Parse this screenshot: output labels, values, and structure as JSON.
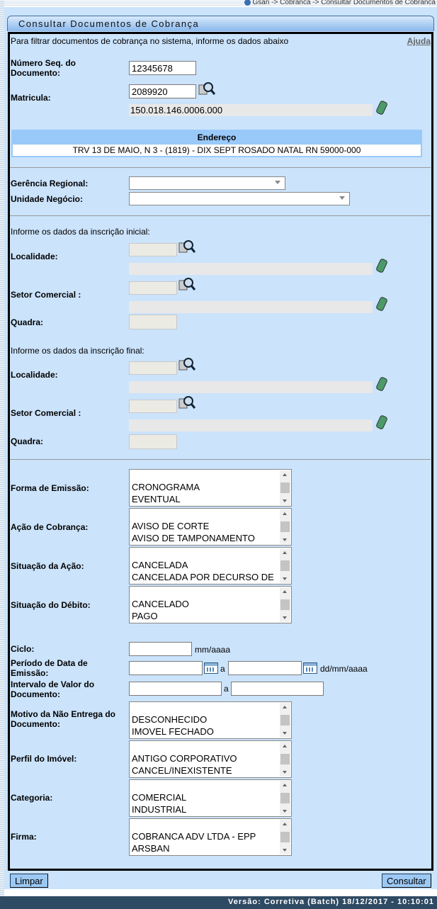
{
  "breadcrumb": "Gsan -> Cobranca -> Consultar Documentos de Cobranca",
  "title": "Consultar Documentos de Cobrança",
  "intro": "Para filtrar documentos de cobrança no sistema, informe os dados abaixo",
  "help_link": "Ajuda",
  "numero_seq": {
    "label": "Número Seq. do Documento:",
    "value": "12345678"
  },
  "matricula": {
    "label": "Matricula:",
    "value": "2089920",
    "inscricao": "150.018.146.0006.000"
  },
  "endereco": {
    "header": "Endereço",
    "value": "TRV 13 DE MAIO, N 3 - (1819) - DIX SEPT ROSADO NATAL RN 59000-000"
  },
  "gerencia_regional": {
    "label": "Gerência Regional:",
    "value": ""
  },
  "unidade_negocio": {
    "label": "Unidade Negócio:",
    "value": ""
  },
  "inscricao_inicial": {
    "heading": "Informe os dados da inscrição inicial:",
    "localidade_label": "Localidade:",
    "setor_label": "Setor Comercial :",
    "quadra_label": "Quadra:"
  },
  "inscricao_final": {
    "heading": "Informe os dados da inscrição final:",
    "localidade_label": "Localidade:",
    "setor_label": "Setor Comercial :",
    "quadra_label": "Quadra:"
  },
  "forma_emissao": {
    "label": "Forma de Emissão:",
    "options": [
      "CRONOGRAMA",
      "EVENTUAL"
    ]
  },
  "acao_cobranca": {
    "label": "Ação de Cobrança:",
    "options": [
      "AVISO DE CORTE",
      "AVISO DE TAMPONAMENTO"
    ]
  },
  "situacao_acao": {
    "label": "Situação da Ação:",
    "options": [
      "CANCELADA",
      "CANCELADA POR DECURSO DE"
    ]
  },
  "situacao_debito": {
    "label": "Situação do Débito:",
    "options": [
      "CANCELADO",
      "PAGO"
    ]
  },
  "ciclo": {
    "label": "Ciclo:",
    "value": "",
    "hint": "mm/aaaa"
  },
  "periodo_emissao": {
    "label": "Período de Data de Emissão:",
    "separator": "a",
    "hint": "dd/mm/aaaa"
  },
  "intervalo_valor": {
    "label": "Intervalo de Valor do Documento:",
    "separator": "a"
  },
  "motivo_nao_entrega": {
    "label": "Motivo da Não Entrega do Documento:",
    "options": [
      "DESCONHECIDO",
      "IMOVEL FECHADO"
    ]
  },
  "perfil_imovel": {
    "label": "Perfil do Imóvel:",
    "options": [
      "ANTIGO CORPORATIVO",
      "CANCEL/INEXISTENTE"
    ]
  },
  "categoria": {
    "label": "Categoria:",
    "options": [
      "COMERCIAL",
      "INDUSTRIAL"
    ]
  },
  "firma": {
    "label": "Firma:",
    "options": [
      "COBRANCA ADV LTDA - EPP",
      "ARSBAN"
    ]
  },
  "buttons": {
    "limpar": "Limpar",
    "consultar": "Consultar"
  },
  "footer": "Versão: Corretiva (Batch) 18/12/2017 - 10:10:01"
}
